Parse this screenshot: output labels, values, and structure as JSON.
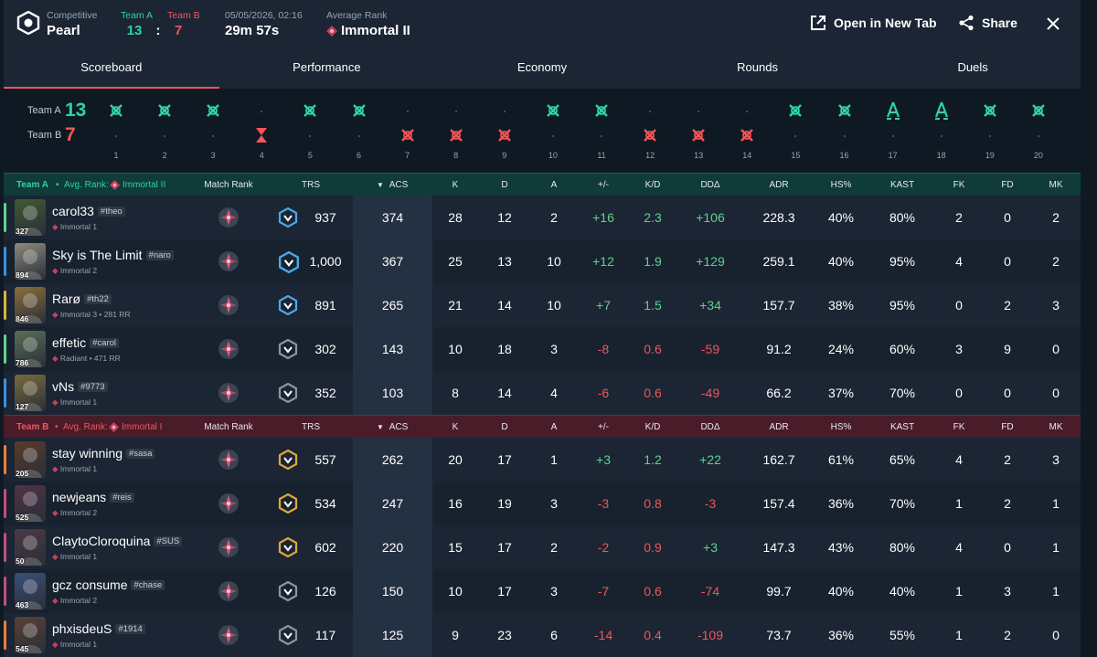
{
  "header": {
    "mode_label": "Competitive",
    "map": "Pearl",
    "team_a_label": "Team A",
    "team_b_label": "Team B",
    "team_a_score": "13",
    "colon": ":",
    "team_b_score": "7",
    "datetime": "05/05/2026, 02:16",
    "duration": "29m 57s",
    "avg_rank_label": "Average Rank",
    "avg_rank": "Immortal II",
    "open_new_tab": "Open in New Tab",
    "share": "Share"
  },
  "tabs": [
    "Scoreboard",
    "Performance",
    "Economy",
    "Rounds",
    "Duels"
  ],
  "timeline": {
    "team_a_label": "Team A",
    "team_b_label": "Team B",
    "team_a_score": "13",
    "team_b_score": "7",
    "rounds": [
      {
        "n": "1",
        "winner": "A",
        "type": "elim"
      },
      {
        "n": "2",
        "winner": "A",
        "type": "elim"
      },
      {
        "n": "3",
        "winner": "A",
        "type": "elim"
      },
      {
        "n": "4",
        "winner": "B",
        "type": "time"
      },
      {
        "n": "5",
        "winner": "A",
        "type": "elim"
      },
      {
        "n": "6",
        "winner": "A",
        "type": "elim"
      },
      {
        "n": "7",
        "winner": "B",
        "type": "elim"
      },
      {
        "n": "8",
        "winner": "B",
        "type": "elim"
      },
      {
        "n": "9",
        "winner": "B",
        "type": "elim"
      },
      {
        "n": "10",
        "winner": "A",
        "type": "elim"
      },
      {
        "n": "11",
        "winner": "A",
        "type": "elim"
      },
      {
        "n": "12",
        "winner": "B",
        "type": "elim"
      },
      {
        "n": "13",
        "winner": "B",
        "type": "elim"
      },
      {
        "n": "14",
        "winner": "B",
        "type": "elim"
      },
      {
        "n": "15",
        "winner": "A",
        "type": "elim"
      },
      {
        "n": "16",
        "winner": "A",
        "type": "elim"
      },
      {
        "n": "17",
        "winner": "A",
        "type": "defuse"
      },
      {
        "n": "18",
        "winner": "A",
        "type": "defuse"
      },
      {
        "n": "19",
        "winner": "A",
        "type": "elim"
      },
      {
        "n": "20",
        "winner": "A",
        "type": "elim"
      }
    ]
  },
  "columns": {
    "match_rank": "Match Rank",
    "trs": "TRS",
    "acs": "ACS",
    "k": "K",
    "d": "D",
    "a": "A",
    "pm": "+/-",
    "kd": "K/D",
    "dd": "DDΔ",
    "adr": "ADR",
    "hs": "HS%",
    "kast": "KAST",
    "fk": "FK",
    "fd": "FD",
    "mk": "MK"
  },
  "teams": [
    {
      "name": "Team A",
      "bullet": "•",
      "avg_label": "Avg. Rank:",
      "avg_rank": "Immortal II",
      "color": "#2fd3a5",
      "players": [
        {
          "name": "carol33",
          "tag": "#theo",
          "rank": "Immortal 1",
          "level": "327",
          "stripe": "#5fd38d",
          "avatar": "#3f5a35",
          "trs": "937",
          "trs_tier": "blue",
          "acs": "374",
          "k": "28",
          "d": "12",
          "a": "2",
          "pm": "+16",
          "kd": "2.3",
          "dd": "+106",
          "adr": "228.3",
          "hs": "40%",
          "kast": "80%",
          "fk": "2",
          "fd": "0",
          "mk": "2"
        },
        {
          "name": "Sky is The Limit",
          "tag": "#naro",
          "rank": "Immortal 2",
          "level": "894",
          "stripe": "#3d8fe0",
          "avatar": "#8c8a7e",
          "trs": "1,000",
          "trs_tier": "blue-lg",
          "acs": "367",
          "k": "25",
          "d": "13",
          "a": "10",
          "pm": "+12",
          "kd": "1.9",
          "dd": "+129",
          "adr": "259.1",
          "hs": "40%",
          "kast": "95%",
          "fk": "4",
          "fd": "0",
          "mk": "2"
        },
        {
          "name": "Rarø",
          "tag": "#th22",
          "rank": "Immortal 3 • 281 RR",
          "level": "846",
          "stripe": "#d9b441",
          "avatar": "#8a6e3c",
          "trs": "891",
          "trs_tier": "blue",
          "acs": "265",
          "k": "21",
          "d": "14",
          "a": "10",
          "pm": "+7",
          "kd": "1.5",
          "dd": "+34",
          "adr": "157.7",
          "hs": "38%",
          "kast": "95%",
          "fk": "0",
          "fd": "2",
          "mk": "3"
        },
        {
          "name": "effetic",
          "tag": "#carol",
          "rank": "Radiant • 471 RR",
          "level": "786",
          "stripe": "#5fd38d",
          "avatar": "#5b6d58",
          "trs": "302",
          "trs_tier": "silver",
          "acs": "143",
          "k": "10",
          "d": "18",
          "a": "3",
          "pm": "-8",
          "kd": "0.6",
          "dd": "-59",
          "adr": "91.2",
          "hs": "24%",
          "kast": "60%",
          "fk": "3",
          "fd": "9",
          "mk": "0"
        },
        {
          "name": "vNs",
          "tag": "#9773",
          "rank": "Immortal 1",
          "level": "127",
          "stripe": "#3d8fe0",
          "avatar": "#7a6a3f",
          "trs": "352",
          "trs_tier": "silver",
          "acs": "103",
          "k": "8",
          "d": "14",
          "a": "4",
          "pm": "-6",
          "kd": "0.6",
          "dd": "-49",
          "adr": "66.2",
          "hs": "37%",
          "kast": "70%",
          "fk": "0",
          "fd": "0",
          "mk": "0"
        }
      ]
    },
    {
      "name": "Team B",
      "bullet": "•",
      "avg_label": "Avg. Rank:",
      "avg_rank": "Immortal I",
      "color": "#f2555a",
      "players": [
        {
          "name": "stay winning",
          "tag": "#sasa",
          "rank": "Immortal 1",
          "level": "205",
          "stripe": "#e8823a",
          "avatar": "#5a3b2c",
          "trs": "557",
          "trs_tier": "gold",
          "acs": "262",
          "k": "20",
          "d": "17",
          "a": "1",
          "pm": "+3",
          "kd": "1.2",
          "dd": "+22",
          "adr": "162.7",
          "hs": "61%",
          "kast": "65%",
          "fk": "4",
          "fd": "2",
          "mk": "3"
        },
        {
          "name": "newjeans",
          "tag": "#reis",
          "rank": "Immortal 2",
          "level": "525",
          "stripe": "#c24f7a",
          "avatar": "#4f3348",
          "trs": "534",
          "trs_tier": "gold",
          "acs": "247",
          "k": "16",
          "d": "19",
          "a": "3",
          "pm": "-3",
          "kd": "0.8",
          "dd": "-3",
          "adr": "157.4",
          "hs": "36%",
          "kast": "70%",
          "fk": "1",
          "fd": "2",
          "mk": "1"
        },
        {
          "name": "ClaytoCloroquina",
          "tag": "#SUS",
          "rank": "Immortal 1",
          "level": "50",
          "stripe": "#c24f7a",
          "avatar": "#4a3a45",
          "trs": "602",
          "trs_tier": "gold",
          "acs": "220",
          "k": "15",
          "d": "17",
          "a": "2",
          "pm": "-2",
          "kd": "0.9",
          "dd": "+3",
          "adr": "147.3",
          "hs": "43%",
          "kast": "80%",
          "fk": "4",
          "fd": "0",
          "mk": "1"
        },
        {
          "name": "gcz consume",
          "tag": "#chase",
          "rank": "Immortal 2",
          "level": "463",
          "stripe": "#c24f7a",
          "avatar": "#3b4f7a",
          "trs": "126",
          "trs_tier": "silver",
          "acs": "150",
          "k": "10",
          "d": "17",
          "a": "3",
          "pm": "-7",
          "kd": "0.6",
          "dd": "-74",
          "adr": "99.7",
          "hs": "40%",
          "kast": "40%",
          "fk": "1",
          "fd": "3",
          "mk": "1"
        },
        {
          "name": "phxisdeuS",
          "tag": "#1914",
          "rank": "Immortal 1",
          "level": "545",
          "stripe": "#e8823a",
          "avatar": "#5a4038",
          "trs": "117",
          "trs_tier": "silver",
          "acs": "125",
          "k": "9",
          "d": "23",
          "a": "6",
          "pm": "-14",
          "kd": "0.4",
          "dd": "-109",
          "adr": "73.7",
          "hs": "36%",
          "kast": "55%",
          "fk": "1",
          "fd": "2",
          "mk": "0"
        }
      ]
    }
  ]
}
